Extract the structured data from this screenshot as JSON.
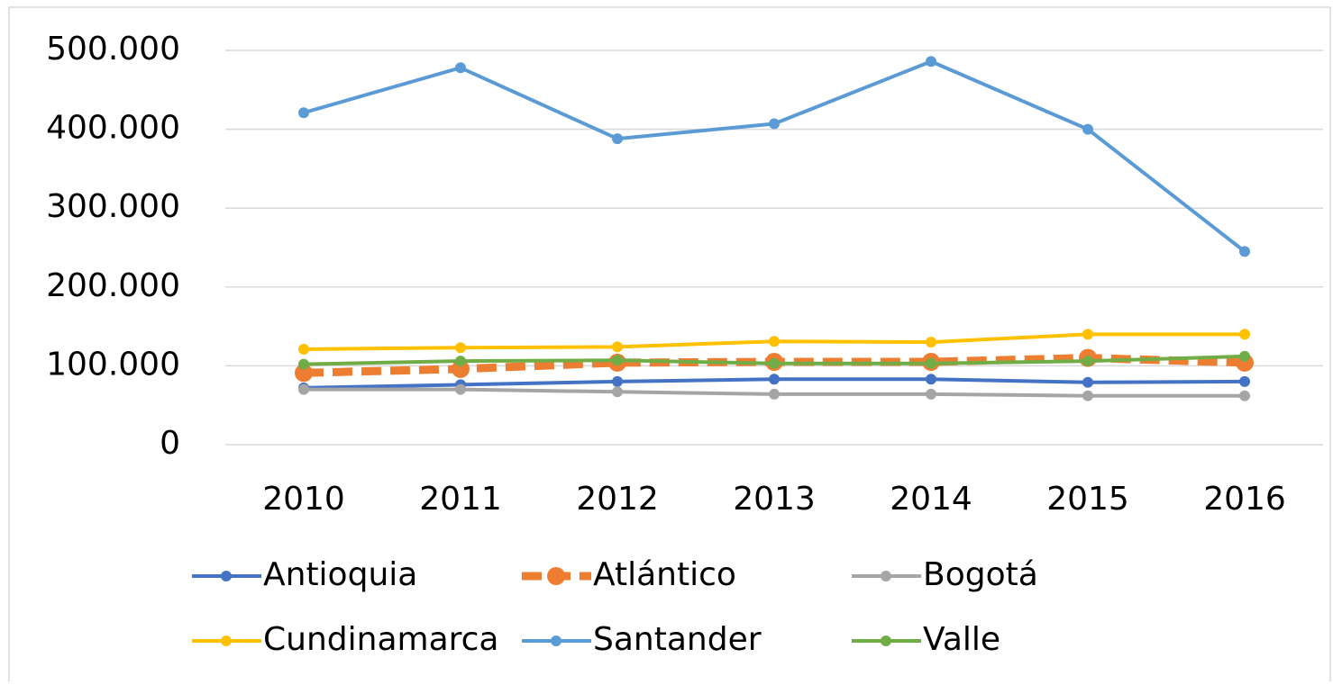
{
  "chart_data": {
    "type": "line",
    "categories": [
      "2010",
      "2011",
      "2012",
      "2013",
      "2014",
      "2015",
      "2016"
    ],
    "series": [
      {
        "name": "Antioquia",
        "color": "#4472c4",
        "values": [
          72000,
          76000,
          80000,
          83000,
          83000,
          79000,
          80000
        ]
      },
      {
        "name": "Atlántico",
        "color": "#ed7d31",
        "line_style": "dashed",
        "values": [
          91000,
          96000,
          104000,
          105000,
          105000,
          110000,
          104000
        ]
      },
      {
        "name": "Bogotá",
        "color": "#a5a5a5",
        "values": [
          70000,
          70000,
          67000,
          64000,
          64000,
          62000,
          62000
        ]
      },
      {
        "name": "Cundinamarca",
        "color": "#ffc000",
        "values": [
          121000,
          123000,
          124000,
          131000,
          130000,
          140000,
          140000
        ]
      },
      {
        "name": "Santander",
        "color": "#5b9bd5",
        "values": [
          421000,
          478000,
          388000,
          407000,
          486000,
          400000,
          245000
        ]
      },
      {
        "name": "Valle",
        "color": "#70ad47",
        "values": [
          102000,
          106000,
          107000,
          103000,
          103000,
          106000,
          112000
        ]
      }
    ],
    "ylim": [
      0,
      500000
    ],
    "yticks": [
      0,
      {
        "value": 100000,
        "label": "100.000"
      },
      {
        "value": 200000,
        "label": "200.000"
      },
      {
        "value": 300000,
        "label": "300.000"
      },
      {
        "value": 400000,
        "label": "400.000"
      },
      {
        "value": 500000,
        "label": "500.000"
      }
    ],
    "grid": true,
    "legend": "bottom"
  }
}
